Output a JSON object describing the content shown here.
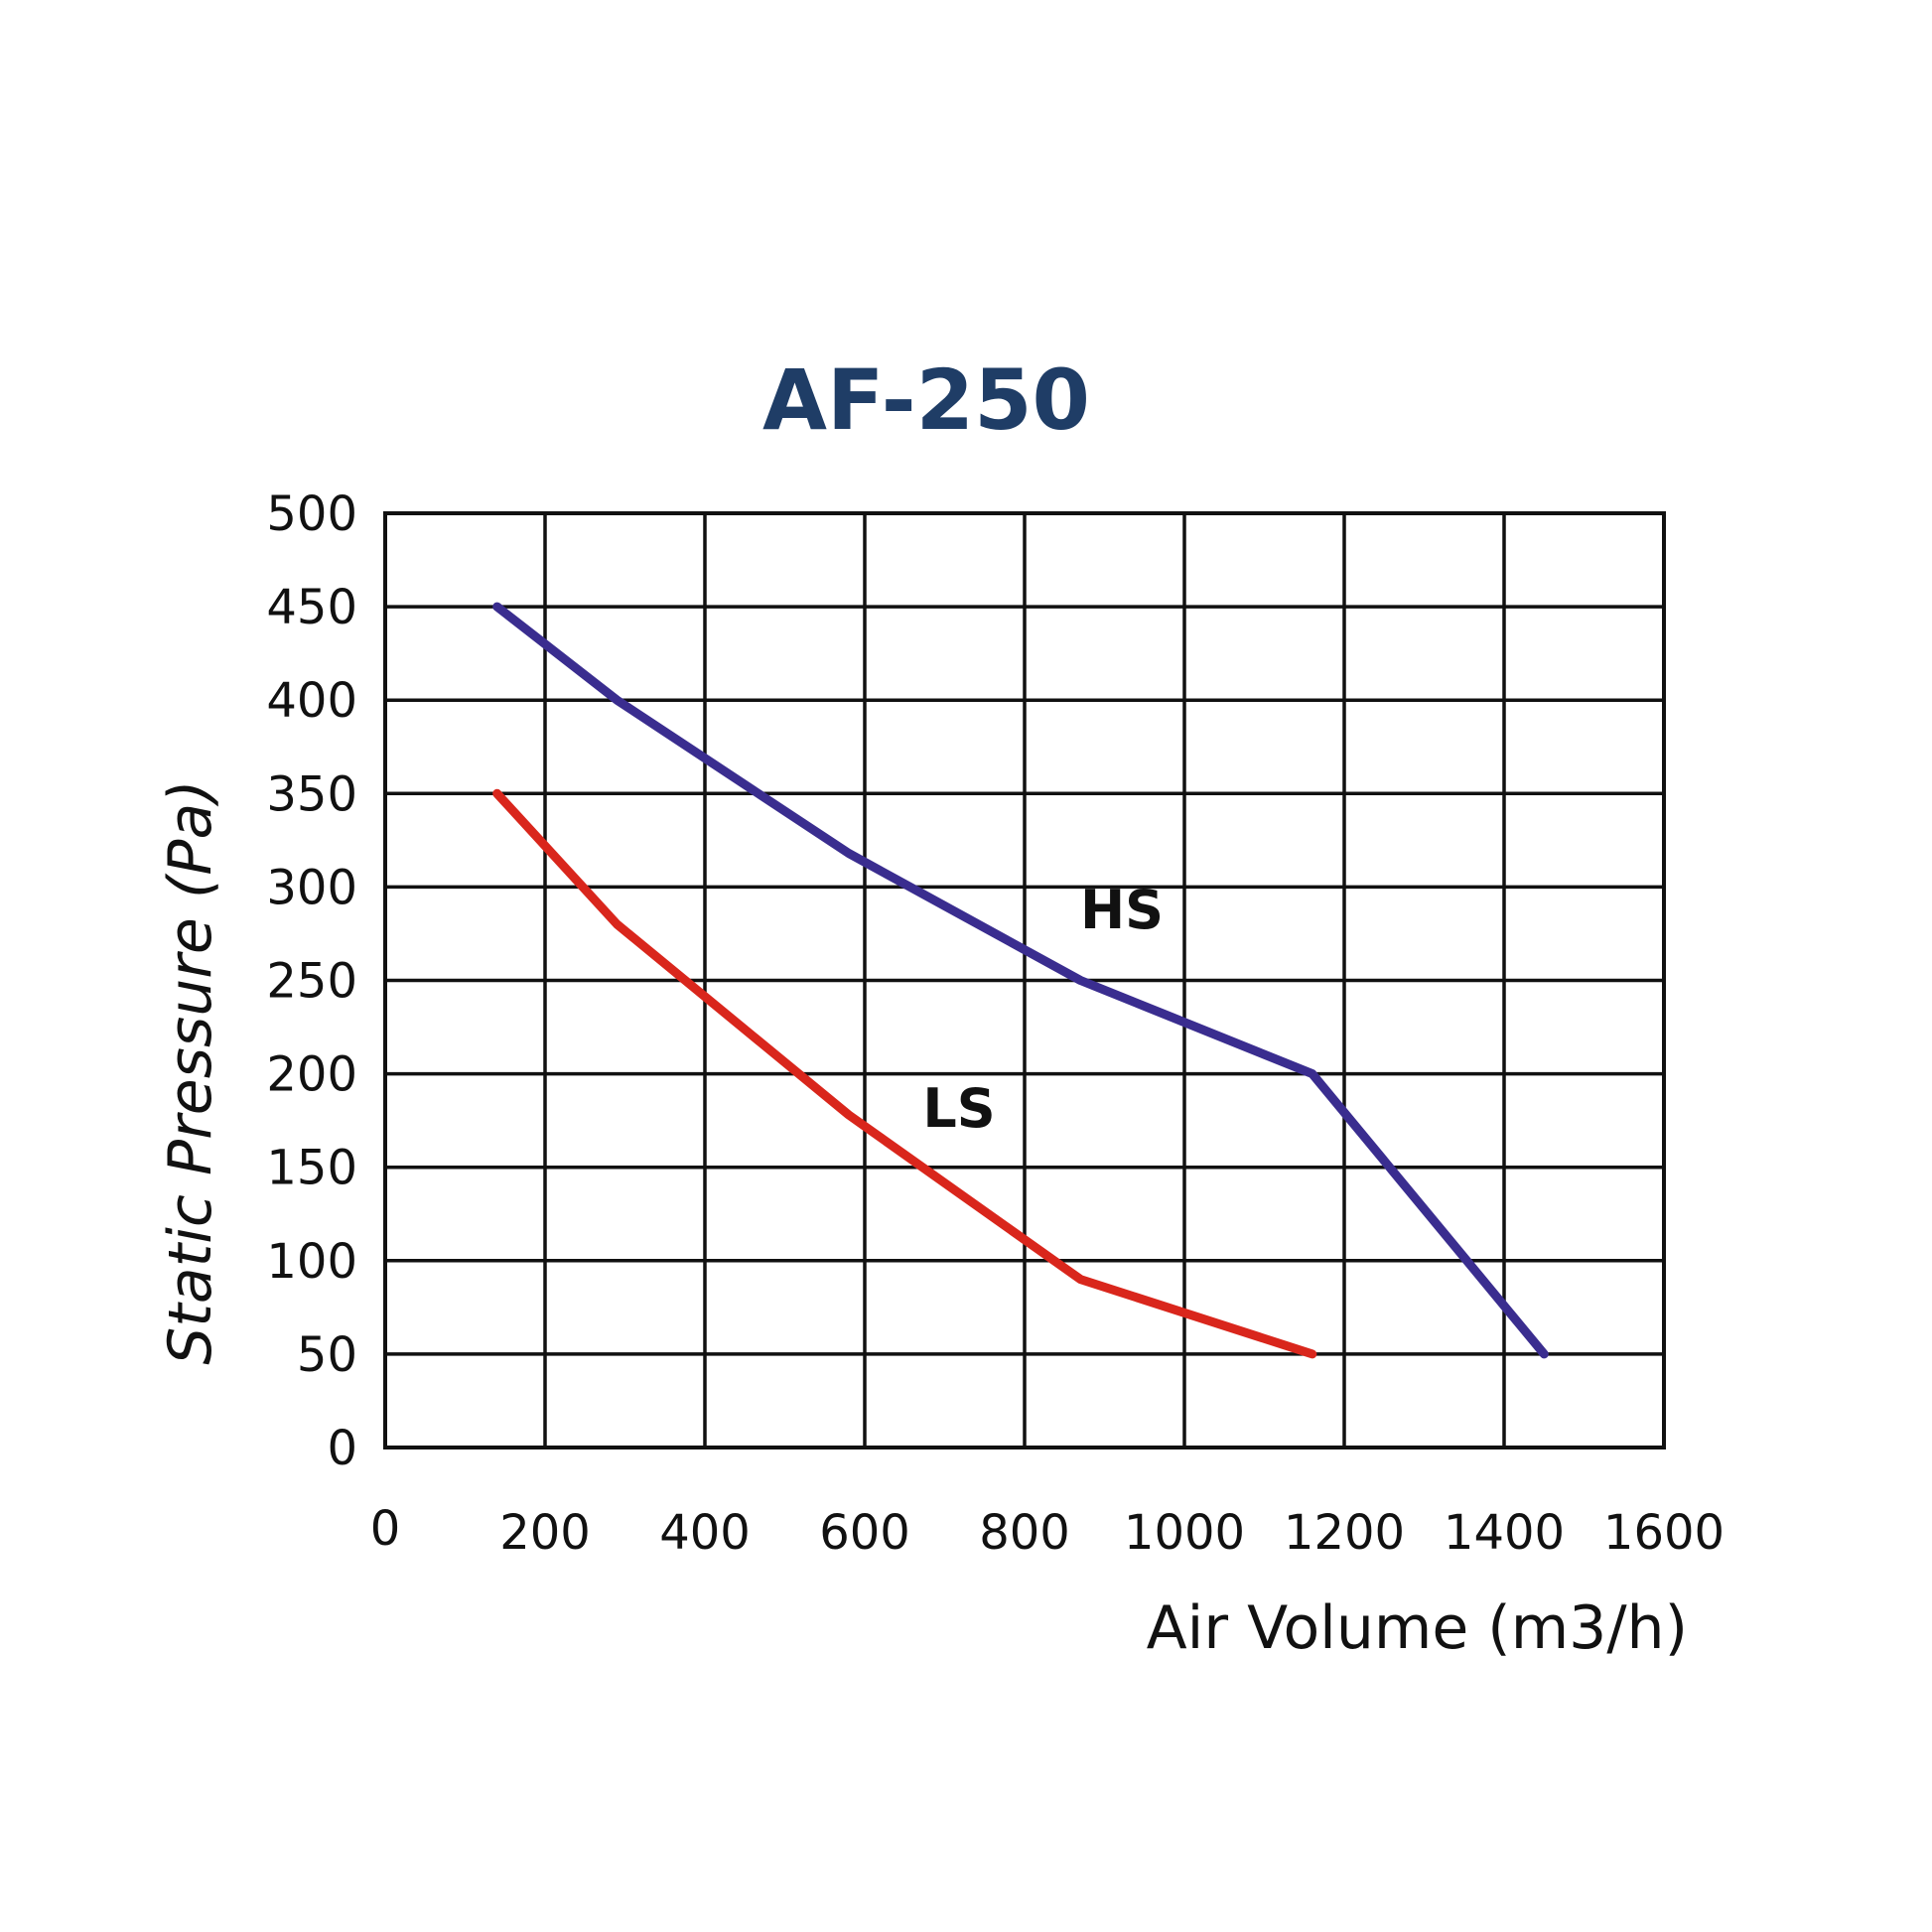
{
  "chart_data": {
    "type": "line",
    "title": "AF-250",
    "xlabel": "Air Volume (m3/h)",
    "ylabel": "Static Pressure (Pa)",
    "xlim": [
      0,
      1600
    ],
    "ylim": [
      0,
      500
    ],
    "x_ticks": [
      "0",
      "200",
      "400",
      "600",
      "800",
      "1000",
      "1200",
      "1400",
      "1600"
    ],
    "y_ticks": [
      "0",
      "50",
      "100",
      "150",
      "200",
      "250",
      "300",
      "350",
      "400",
      "450",
      "500"
    ],
    "grid": true,
    "series": [
      {
        "name": "HS",
        "color": "#3a2d8f",
        "x": [
          140,
          290,
          580,
          870,
          1160,
          1450
        ],
        "y": [
          450,
          400,
          318,
          250,
          200,
          50
        ]
      },
      {
        "name": "LS",
        "color": "#d9261c",
        "x": [
          140,
          290,
          580,
          870,
          1160
        ],
        "y": [
          350,
          280,
          178,
          90,
          50
        ]
      }
    ]
  },
  "colors": {
    "title": "#1f3d66",
    "grid": "#111111"
  }
}
